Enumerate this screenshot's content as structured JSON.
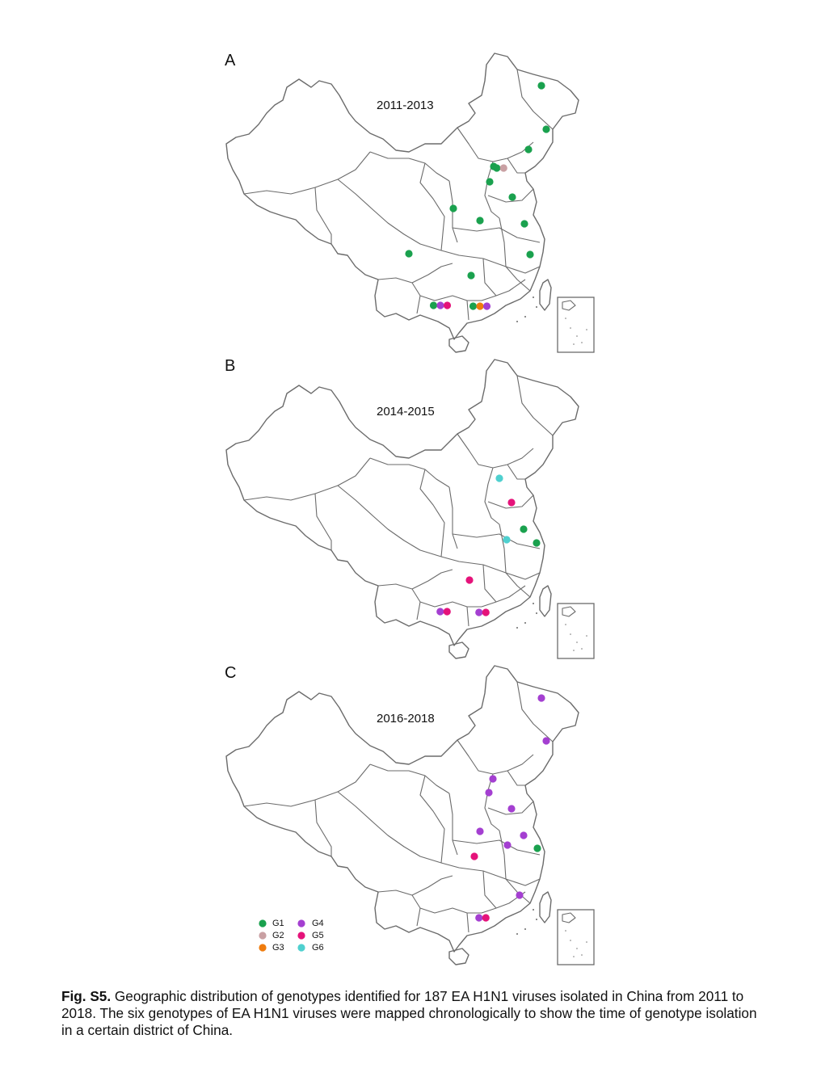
{
  "panels": [
    {
      "letter": "A",
      "period": "2011-2013",
      "points": [
        {
          "province": "Heilongjiang",
          "genotypes": [
            "G1"
          ]
        },
        {
          "province": "Jilin",
          "genotypes": [
            "G1"
          ]
        },
        {
          "province": "Liaoning",
          "genotypes": [
            "G1"
          ]
        },
        {
          "province": "Beijing",
          "genotypes": [
            "G1"
          ]
        },
        {
          "province": "Tianjin",
          "genotypes": [
            "G1",
            "G2"
          ]
        },
        {
          "province": "Hebei",
          "genotypes": [
            "G1"
          ]
        },
        {
          "province": "Shandong",
          "genotypes": [
            "G1"
          ]
        },
        {
          "province": "Shaanxi",
          "genotypes": [
            "G1"
          ]
        },
        {
          "province": "Henan",
          "genotypes": [
            "G1"
          ]
        },
        {
          "province": "Jiangsu",
          "genotypes": [
            "G1"
          ]
        },
        {
          "province": "Zhejiang",
          "genotypes": [
            "G1"
          ]
        },
        {
          "province": "Sichuan",
          "genotypes": [
            "G1"
          ]
        },
        {
          "province": "Hunan",
          "genotypes": [
            "G1"
          ]
        },
        {
          "province": "Guangxi",
          "genotypes": [
            "G1",
            "G4",
            "G5"
          ]
        },
        {
          "province": "Guangdong",
          "genotypes": [
            "G1",
            "G3",
            "G4"
          ]
        }
      ]
    },
    {
      "letter": "B",
      "period": "2014-2015",
      "points": [
        {
          "province": "Tianjin",
          "genotypes": [
            "G6"
          ]
        },
        {
          "province": "Shandong",
          "genotypes": [
            "G5"
          ]
        },
        {
          "province": "Jiangsu",
          "genotypes": [
            "G1"
          ]
        },
        {
          "province": "Shanghai",
          "genotypes": [
            "G1"
          ]
        },
        {
          "province": "Anhui",
          "genotypes": [
            "G6"
          ]
        },
        {
          "province": "Hunan",
          "genotypes": [
            "G5"
          ]
        },
        {
          "province": "Guangxi",
          "genotypes": [
            "G4",
            "G5"
          ]
        },
        {
          "province": "Guangdong",
          "genotypes": [
            "G4",
            "G5"
          ]
        }
      ]
    },
    {
      "letter": "C",
      "period": "2016-2018",
      "points": [
        {
          "province": "Heilongjiang",
          "genotypes": [
            "G4"
          ]
        },
        {
          "province": "Jilin",
          "genotypes": [
            "G4"
          ]
        },
        {
          "province": "Beijing",
          "genotypes": [
            "G4"
          ]
        },
        {
          "province": "Hebei",
          "genotypes": [
            "G4"
          ]
        },
        {
          "province": "Shandong",
          "genotypes": [
            "G4"
          ]
        },
        {
          "province": "Henan",
          "genotypes": [
            "G4"
          ]
        },
        {
          "province": "Jiangsu",
          "genotypes": [
            "G4"
          ]
        },
        {
          "province": "Anhui",
          "genotypes": [
            "G4"
          ]
        },
        {
          "province": "Shanghai",
          "genotypes": [
            "G1"
          ]
        },
        {
          "province": "Hunan",
          "genotypes": [
            "G5"
          ]
        },
        {
          "province": "Fujian",
          "genotypes": [
            "G4"
          ]
        },
        {
          "province": "Guangdong",
          "genotypes": [
            "G4",
            "G5"
          ]
        }
      ]
    }
  ],
  "legend": [
    {
      "label": "G1",
      "color": "#1aa14e"
    },
    {
      "label": "G2",
      "color": "#c9a0a3"
    },
    {
      "label": "G3",
      "color": "#ef7c0e"
    },
    {
      "label": "G4",
      "color": "#a43fd1"
    },
    {
      "label": "G5",
      "color": "#e5137a"
    },
    {
      "label": "G6",
      "color": "#4fd0cf"
    }
  ],
  "caption": {
    "label": "Fig. S5.",
    "text": " Geographic distribution of genotypes identified for 187 EA H1N1 viruses isolated in China from 2011 to 2018. The six genotypes of EA H1N1 viruses were mapped chronologically to show the time of genotype isolation in a certain district of China."
  }
}
